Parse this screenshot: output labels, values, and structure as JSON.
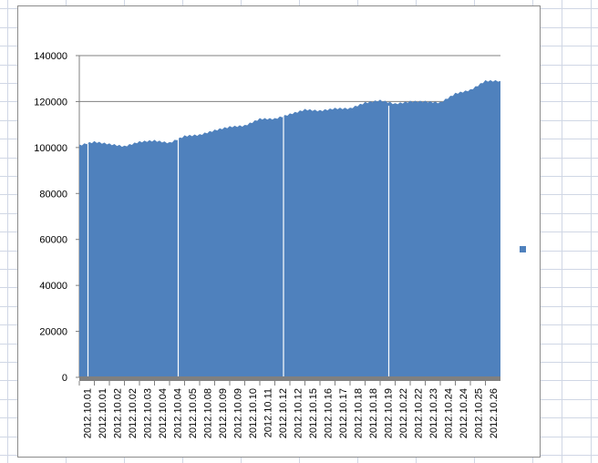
{
  "chart_data": {
    "type": "area",
    "title": "",
    "xlabel": "",
    "ylabel": "",
    "ylim": [
      0,
      140000
    ],
    "yticks": [
      0,
      20000,
      40000,
      60000,
      80000,
      100000,
      120000,
      140000
    ],
    "ytick_labels": [
      "0",
      "20000",
      "40000",
      "60000",
      "80000",
      "100000",
      "120000",
      "140000"
    ],
    "grid": true,
    "legend": "right",
    "categories": [
      "2012.10.01",
      "2012.10.01",
      "2012.10.02",
      "2012.10.02",
      "2012.10.03",
      "2012.10.04",
      "2012.10.04",
      "2012.10.05",
      "2012.10.08",
      "2012.10.09",
      "2012.10.09",
      "2012.10.10",
      "2012.10.11",
      "2012.10.12",
      "2012.10.12",
      "2012.10.15",
      "2012.10.16",
      "2012.10.17",
      "2012.10.18",
      "2012.10.18",
      "2012.10.19",
      "2012.10.22",
      "2012.10.22",
      "2012.10.23",
      "2012.10.24",
      "2012.10.24",
      "2012.10.25",
      "2012.10.26"
    ],
    "series": [
      {
        "values": [
          101000,
          102500,
          101500,
          100500,
          102500,
          103000,
          102000,
          105000,
          105500,
          107500,
          109000,
          109500,
          112500,
          112500,
          114500,
          116500,
          116000,
          117000,
          117000,
          119500,
          120500,
          119000,
          120000,
          120000,
          119500,
          123500,
          125000,
          129000
        ]
      }
    ],
    "colors": {
      "fill": "#4f81bd",
      "gridline": "#808080",
      "axis_band": "#808080",
      "legend_marker": "#4f81bd"
    }
  }
}
